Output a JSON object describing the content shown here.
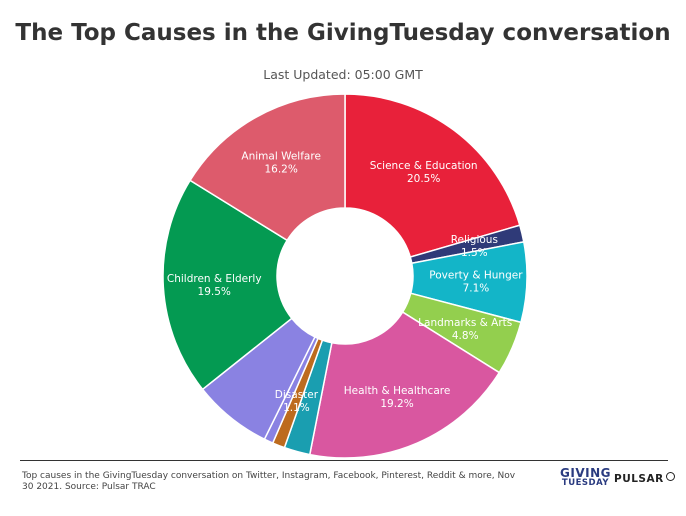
{
  "title": "The Top Causes in the GivingTuesday conversation",
  "subtitle": "Last Updated: 05:00 GMT",
  "footnote": "Top causes in the GivingTuesday conversation on Twitter, Instagram, Facebook, Pinterest, Reddit & more, Nov 30 2021. Source: Pulsar TRAC",
  "logos": {
    "giving_top": "GIVING",
    "giving_bottom": "TUESDAY",
    "pulsar": "PULSAR"
  },
  "chart_data": {
    "type": "pie",
    "donut": true,
    "unit": "%",
    "slices": [
      {
        "name": "Science & Education",
        "value": 20.5,
        "color": "#e8213a",
        "label": "Science & Education",
        "pct_label": "20.5%"
      },
      {
        "name": "Religious",
        "value": 1.5,
        "color": "#2f3a78",
        "label": "Religious",
        "pct_label": "1.5%"
      },
      {
        "name": "Poverty & Hunger",
        "value": 7.1,
        "color": "#13b5c8",
        "label": "Poverty & Hunger",
        "pct_label": "7.1%"
      },
      {
        "name": "Landmarks & Arts",
        "value": 4.8,
        "color": "#93cf4e",
        "label": "Landmarks & Arts",
        "pct_label": "4.8%"
      },
      {
        "name": "Health & Healthcare",
        "value": 19.2,
        "color": "#d957a0",
        "label": "Health & Healthcare",
        "pct_label": "19.2%"
      },
      {
        "name": "",
        "value": 2.3,
        "color": "#1a9eb0",
        "label": "",
        "pct_label": ""
      },
      {
        "name": "Disaster",
        "value": 1.1,
        "color": "#bd6b1e",
        "label": "Disaster",
        "pct_label": "1.1%"
      },
      {
        "name": "",
        "value": 0.8,
        "color": "#8a82e2",
        "label": "",
        "pct_label": ""
      },
      {
        "name": "",
        "value": 7.0,
        "color": "#8a82e2",
        "label": "",
        "pct_label": ""
      },
      {
        "name": "Children & Elderly",
        "value": 19.5,
        "color": "#049a52",
        "label": "Children & Elderly",
        "pct_label": "19.5%"
      },
      {
        "name": "Animal Welfare",
        "value": 16.2,
        "color": "#dd5b6c",
        "label": "Animal Welfare",
        "pct_label": "16.2%"
      }
    ]
  }
}
